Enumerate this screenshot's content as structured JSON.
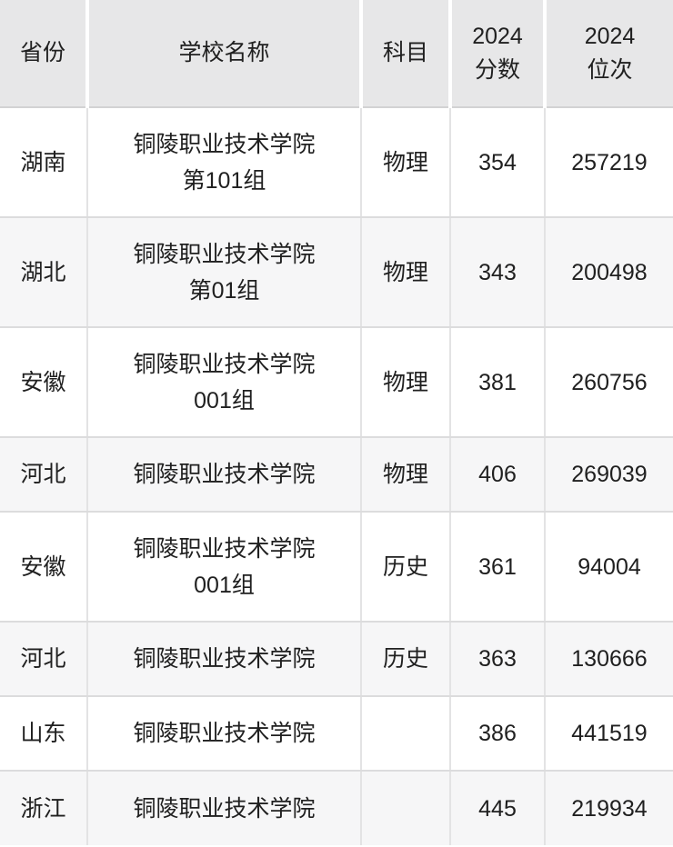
{
  "header": {
    "province": "省份",
    "school": "学校名称",
    "subject": "科目",
    "score_line1": "2024",
    "score_line2": "分数",
    "rank_line1": "2024",
    "rank_line2": "位次"
  },
  "rows": [
    {
      "province": "湖南",
      "school_line1": "铜陵职业技术学院",
      "school_line2": "第101组",
      "subject": "物理",
      "score": "354",
      "rank": "257219"
    },
    {
      "province": "湖北",
      "school_line1": "铜陵职业技术学院",
      "school_line2": "第01组",
      "subject": "物理",
      "score": "343",
      "rank": "200498"
    },
    {
      "province": "安徽",
      "school_line1": "铜陵职业技术学院",
      "school_line2": "001组",
      "subject": "物理",
      "score": "381",
      "rank": "260756"
    },
    {
      "province": "河北",
      "school_line1": "铜陵职业技术学院",
      "school_line2": "",
      "subject": "物理",
      "score": "406",
      "rank": "269039"
    },
    {
      "province": "安徽",
      "school_line1": "铜陵职业技术学院",
      "school_line2": "001组",
      "subject": "历史",
      "score": "361",
      "rank": "94004"
    },
    {
      "province": "河北",
      "school_line1": "铜陵职业技术学院",
      "school_line2": "",
      "subject": "历史",
      "score": "363",
      "rank": "130666"
    },
    {
      "province": "山东",
      "school_line1": "铜陵职业技术学院",
      "school_line2": "",
      "subject": "",
      "score": "386",
      "rank": "441519"
    },
    {
      "province": "浙江",
      "school_line1": "铜陵职业技术学院",
      "school_line2": "",
      "subject": "",
      "score": "445",
      "rank": "219934"
    }
  ],
  "colors": {
    "header_bg": "#e7e7e8",
    "row_bg": "#ffffff",
    "row_alt_bg": "#f6f6f7",
    "header_border": "#d2d2d3",
    "row_border": "#dcdcdd",
    "column_border": "#e3e3e4",
    "text": "#202020"
  },
  "chart_data": {
    "type": "table",
    "title": "铜陵职业技术学院 2024 录取分数线",
    "columns": [
      "省份",
      "学校名称",
      "科目",
      "2024分数",
      "2024位次"
    ],
    "rows": [
      [
        "湖南",
        "铜陵职业技术学院第101组",
        "物理",
        354,
        257219
      ],
      [
        "湖北",
        "铜陵职业技术学院第01组",
        "物理",
        343,
        200498
      ],
      [
        "安徽",
        "铜陵职业技术学院001组",
        "物理",
        381,
        260756
      ],
      [
        "河北",
        "铜陵职业技术学院",
        "物理",
        406,
        269039
      ],
      [
        "安徽",
        "铜陵职业技术学院001组",
        "历史",
        361,
        94004
      ],
      [
        "河北",
        "铜陵职业技术学院",
        "历史",
        363,
        130666
      ],
      [
        "山东",
        "铜陵职业技术学院",
        "",
        386,
        441519
      ],
      [
        "浙江",
        "铜陵职业技术学院",
        "",
        445,
        219934
      ]
    ]
  }
}
